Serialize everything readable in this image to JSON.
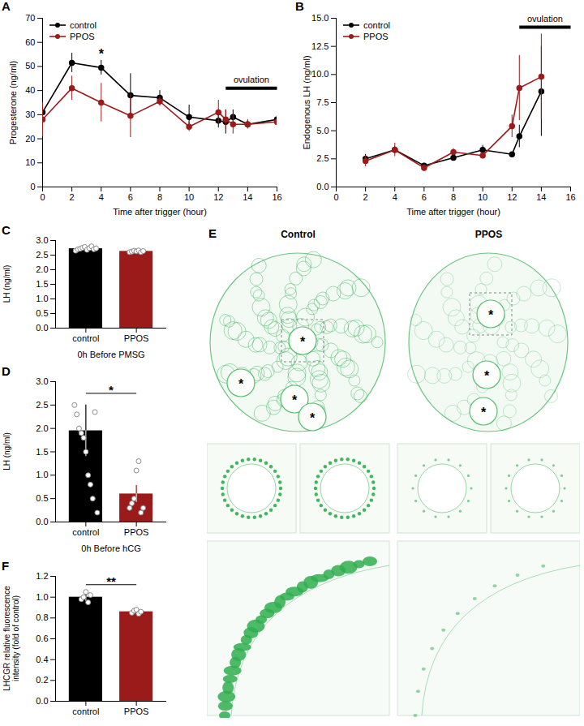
{
  "chart_data": [
    {
      "panel": "A",
      "type": "line",
      "xlabel": "Time after trigger (hour)",
      "ylabel": "Progesterone (ng/ml)",
      "x": [
        0,
        2,
        4,
        6,
        8,
        10,
        12,
        12.5,
        13,
        14,
        16
      ],
      "series": [
        {
          "name": "control",
          "color": "#000000",
          "marker": "circle",
          "values": [
            31,
            51.5,
            49.5,
            38,
            37,
            29,
            27.5,
            27,
            29,
            26,
            28
          ],
          "errors": [
            3,
            4,
            3,
            9,
            3,
            5,
            3,
            5,
            3,
            1.5,
            2
          ]
        },
        {
          "name": "PPOS",
          "color": "#9b1b1b",
          "marker": "circle",
          "values": [
            28,
            41,
            35,
            29.5,
            35.5,
            25,
            31,
            28,
            26,
            26,
            27
          ],
          "errors": [
            7,
            5,
            8,
            9,
            2,
            2,
            5,
            4,
            4,
            2,
            4
          ]
        }
      ],
      "xlim": [
        0,
        16
      ],
      "xticks": [
        0,
        2,
        4,
        6,
        8,
        10,
        12,
        14,
        16
      ],
      "ylim": [
        0,
        70
      ],
      "yticks": [
        0,
        10,
        20,
        30,
        40,
        50,
        60,
        70
      ],
      "legend": "top-left",
      "annotations": [
        {
          "text": "*",
          "x": 4,
          "y": 55
        },
        {
          "text": "ovulation",
          "x": [
            12.5,
            16
          ],
          "y": 41
        }
      ]
    },
    {
      "panel": "B",
      "type": "line",
      "xlabel": "Time after trigger (hour)",
      "ylabel": "Endogenous LH (ng/ml)",
      "x": [
        2,
        4,
        6,
        8,
        10,
        12,
        12.5,
        14
      ],
      "series": [
        {
          "name": "control",
          "color": "#000000",
          "marker": "circle",
          "values": [
            2.5,
            3.3,
            1.9,
            2.6,
            3.3,
            2.9,
            4.5,
            8.5
          ],
          "errors": [
            0.4,
            0.3,
            0.2,
            0.1,
            0.4,
            0.2,
            1.0,
            4.0
          ]
        },
        {
          "name": "PPOS",
          "color": "#9b1b1b",
          "marker": "circle",
          "values": [
            2.3,
            3.3,
            1.7,
            3.1,
            2.8,
            5.4,
            8.8,
            9.8
          ],
          "errors": [
            0.5,
            0.6,
            0.3,
            0.3,
            0.1,
            1.0,
            2.9,
            3.8
          ]
        }
      ],
      "xlim": [
        0,
        16
      ],
      "xticks": [
        0,
        2,
        4,
        6,
        8,
        10,
        12,
        14,
        16
      ],
      "ylim": [
        0,
        15
      ],
      "yticks": [
        {
          "value": 0,
          "label": "0.0"
        },
        {
          "value": 2.5,
          "label": "2.5"
        },
        {
          "value": 5,
          "label": "5.0"
        },
        {
          "value": 7.5,
          "label": "7.5"
        },
        {
          "value": 10,
          "label": "10.0"
        },
        {
          "value": 12.5,
          "label": "12.5"
        },
        {
          "value": 15,
          "label": "15.0"
        }
      ],
      "legend": "top-left",
      "annotations": [
        {
          "text": "ovulation",
          "x": [
            12.5,
            16
          ],
          "y": 14.2
        }
      ]
    },
    {
      "panel": "C",
      "type": "bar",
      "xlabel": "0h Before PMSG",
      "ylabel": "LH (ng/ml)",
      "categories": [
        "control",
        "PPOS"
      ],
      "values": [
        2.72,
        2.63
      ],
      "errors": [
        0.05,
        0.03
      ],
      "colors": [
        "#000000",
        "#9b1b1b"
      ],
      "points": [
        [
          2.65,
          2.7,
          2.72,
          2.75,
          2.78,
          2.68,
          2.74,
          2.8,
          2.7,
          2.73
        ],
        [
          2.6,
          2.62,
          2.65,
          2.63,
          2.66,
          2.6,
          2.64
        ]
      ],
      "ylim": [
        0,
        3
      ],
      "yticks": [
        {
          "value": 0,
          "label": "0.0"
        },
        {
          "value": 0.5,
          "label": "0.5"
        },
        {
          "value": 1,
          "label": "1.0"
        },
        {
          "value": 1.5,
          "label": "1.5"
        },
        {
          "value": 2,
          "label": "2.0"
        },
        {
          "value": 2.5,
          "label": "2.5"
        },
        {
          "value": 3,
          "label": "3.0"
        }
      ]
    },
    {
      "panel": "D",
      "type": "bar",
      "xlabel": "0h Before hCG",
      "ylabel": "LH (ng/ml)",
      "categories": [
        "control",
        "PPOS"
      ],
      "values": [
        1.95,
        0.6
      ],
      "errors": [
        0.55,
        0.18
      ],
      "colors": [
        "#000000",
        "#9b1b1b"
      ],
      "points": [
        [
          2.5,
          2.3,
          2.0,
          1.9,
          1.8,
          1.5,
          1.0,
          0.8,
          0.5,
          2.35,
          0.2
        ],
        [
          0.3,
          0.4,
          0.5,
          1.1,
          1.3,
          0.2,
          0.3
        ]
      ],
      "ylim": [
        0,
        3
      ],
      "yticks": [
        {
          "value": 0,
          "label": "0.0"
        },
        {
          "value": 0.5,
          "label": "0.5"
        },
        {
          "value": 1,
          "label": "1.0"
        },
        {
          "value": 1.5,
          "label": "1.5"
        },
        {
          "value": 2,
          "label": "2.0"
        },
        {
          "value": 2.5,
          "label": "2.5"
        },
        {
          "value": 3,
          "label": "3.0"
        }
      ],
      "annotations": [
        {
          "text": "*",
          "y": 2.75
        }
      ]
    },
    {
      "panel": "E",
      "type": "image",
      "columns": [
        "Control",
        "PPOS"
      ],
      "follicle_marks": [
        [
          "*",
          "*",
          "*",
          "*"
        ],
        [
          "*",
          "*",
          "*"
        ]
      ]
    },
    {
      "panel": "F",
      "type": "bar",
      "ylabel": "LHCGR relative fluorescence intensity (fold of control)",
      "categories": [
        "control",
        "PPOS"
      ],
      "values": [
        1.0,
        0.86
      ],
      "errors": [
        0.04,
        0.02
      ],
      "colors": [
        "#000000",
        "#9b1b1b"
      ],
      "points": [
        [
          0.98,
          1.0,
          1.05,
          0.95,
          1.02
        ],
        [
          0.85,
          0.87,
          0.88,
          0.84,
          0.86
        ]
      ],
      "ylim": [
        0,
        1.2
      ],
      "yticks": [
        {
          "value": 0,
          "label": "0.0"
        },
        {
          "value": 0.2,
          "label": "0.2"
        },
        {
          "value": 0.4,
          "label": "0.4"
        },
        {
          "value": 0.6,
          "label": "0.6"
        },
        {
          "value": 0.8,
          "label": "0.8"
        },
        {
          "value": 1,
          "label": "1.0"
        },
        {
          "value": 1.2,
          "label": "1.2"
        }
      ],
      "annotations": [
        {
          "text": "**",
          "y": 1.12
        }
      ]
    }
  ]
}
